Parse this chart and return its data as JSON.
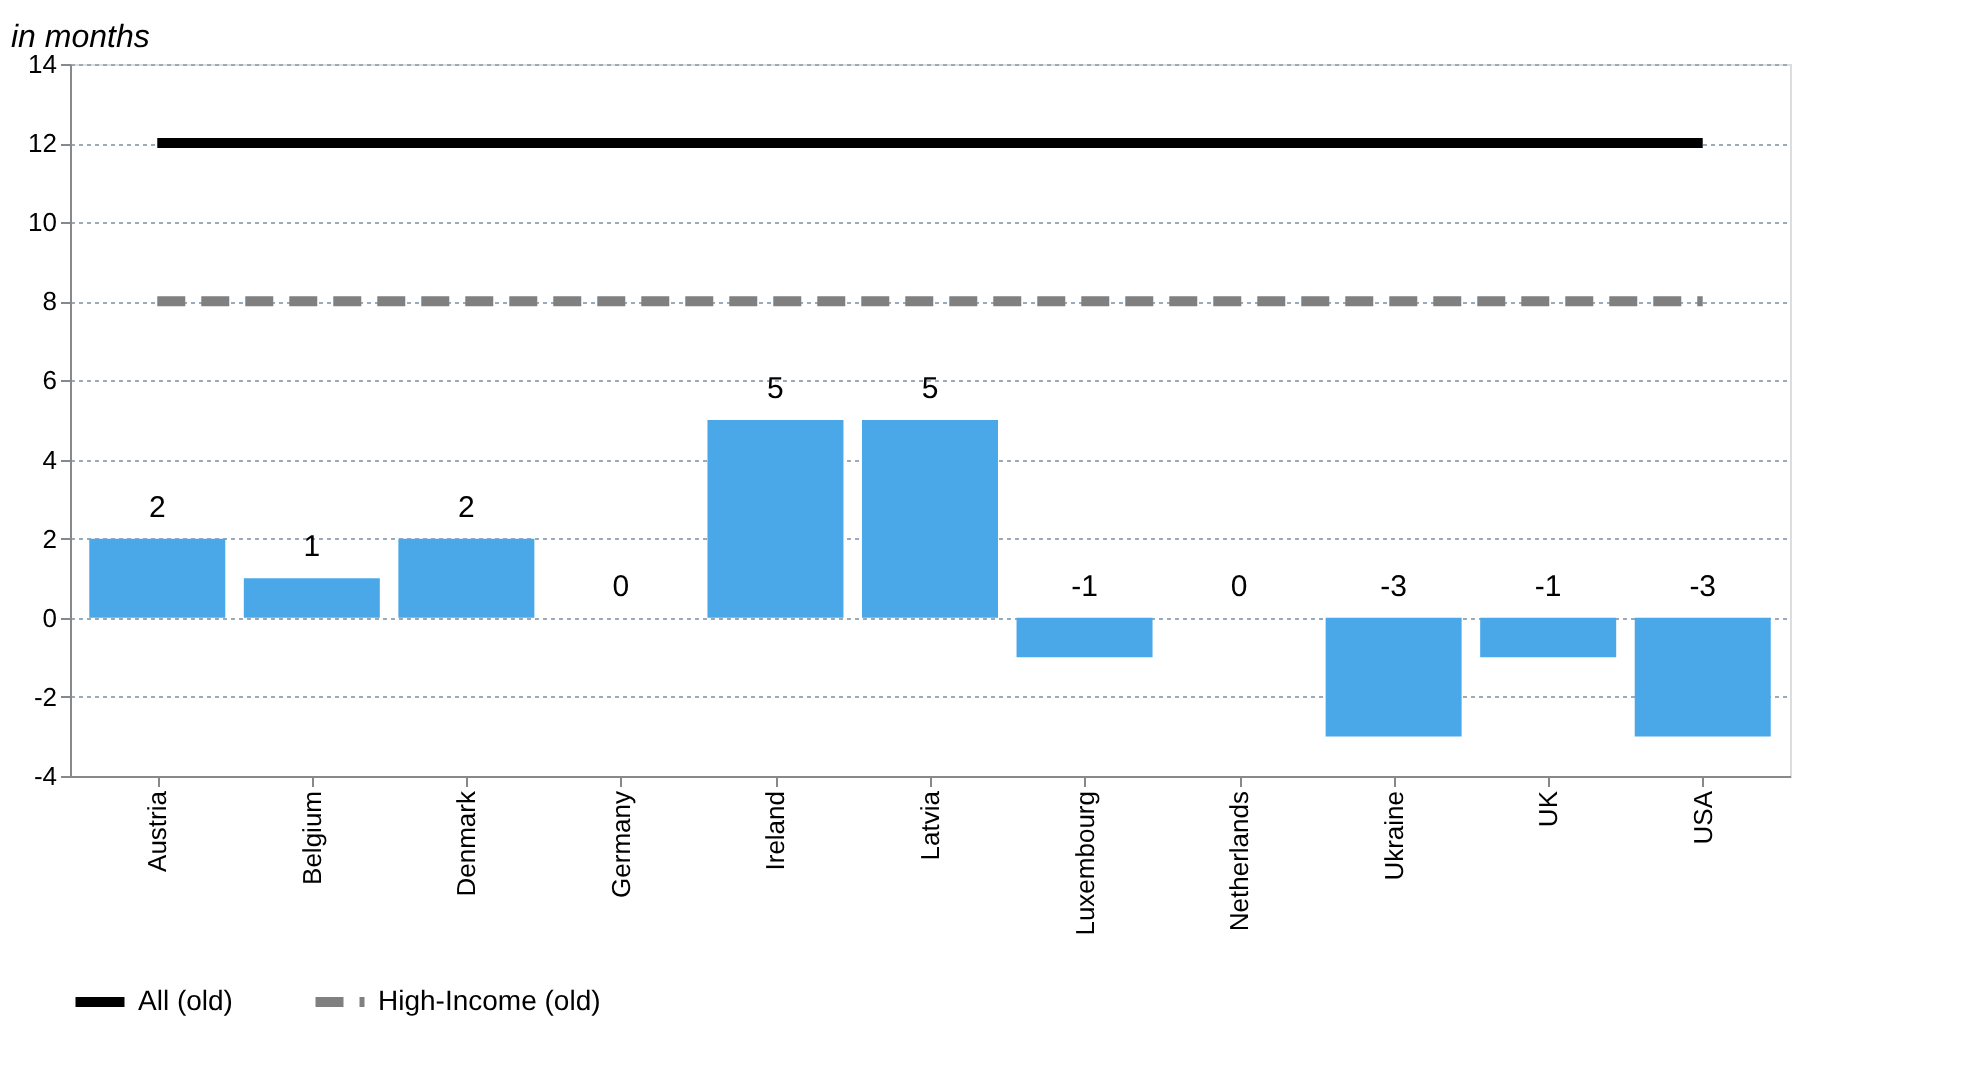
{
  "chart_data": {
    "type": "bar",
    "ylabel": "in months",
    "categories": [
      "Austria",
      "Belgium",
      "Denmark",
      "Germany",
      "Ireland",
      "Latvia",
      "Luxembourg",
      "Netherlands",
      "Ukraine",
      "UK",
      "USA"
    ],
    "series": [
      {
        "color": "#4aa8e8",
        "values": [
          2,
          1,
          2,
          0,
          5,
          5,
          -1,
          0,
          -3,
          -1,
          -3
        ],
        "value_labels": [
          "2",
          "1",
          "2",
          "0",
          "5",
          "5",
          "-1",
          "0",
          "-3",
          "-1",
          "-3"
        ]
      },
      {
        "type": "line",
        "name": "All (old)",
        "color": "#000000",
        "line_style": "solid",
        "values": [
          12,
          12,
          12,
          12,
          12,
          12,
          12,
          12,
          12,
          12,
          12
        ]
      },
      {
        "type": "line",
        "name": "High-Income (old)",
        "color": "#808080",
        "line_style": "dashed",
        "values": [
          8,
          8,
          8,
          8,
          8,
          8,
          8,
          8,
          8,
          8,
          8
        ]
      }
    ],
    "ylim": [
      -4,
      14
    ],
    "yticks": [
      -4,
      -2,
      0,
      2,
      4,
      6,
      8,
      10,
      12,
      14
    ],
    "grid": "y",
    "legend": "bottom",
    "marker": "none"
  }
}
